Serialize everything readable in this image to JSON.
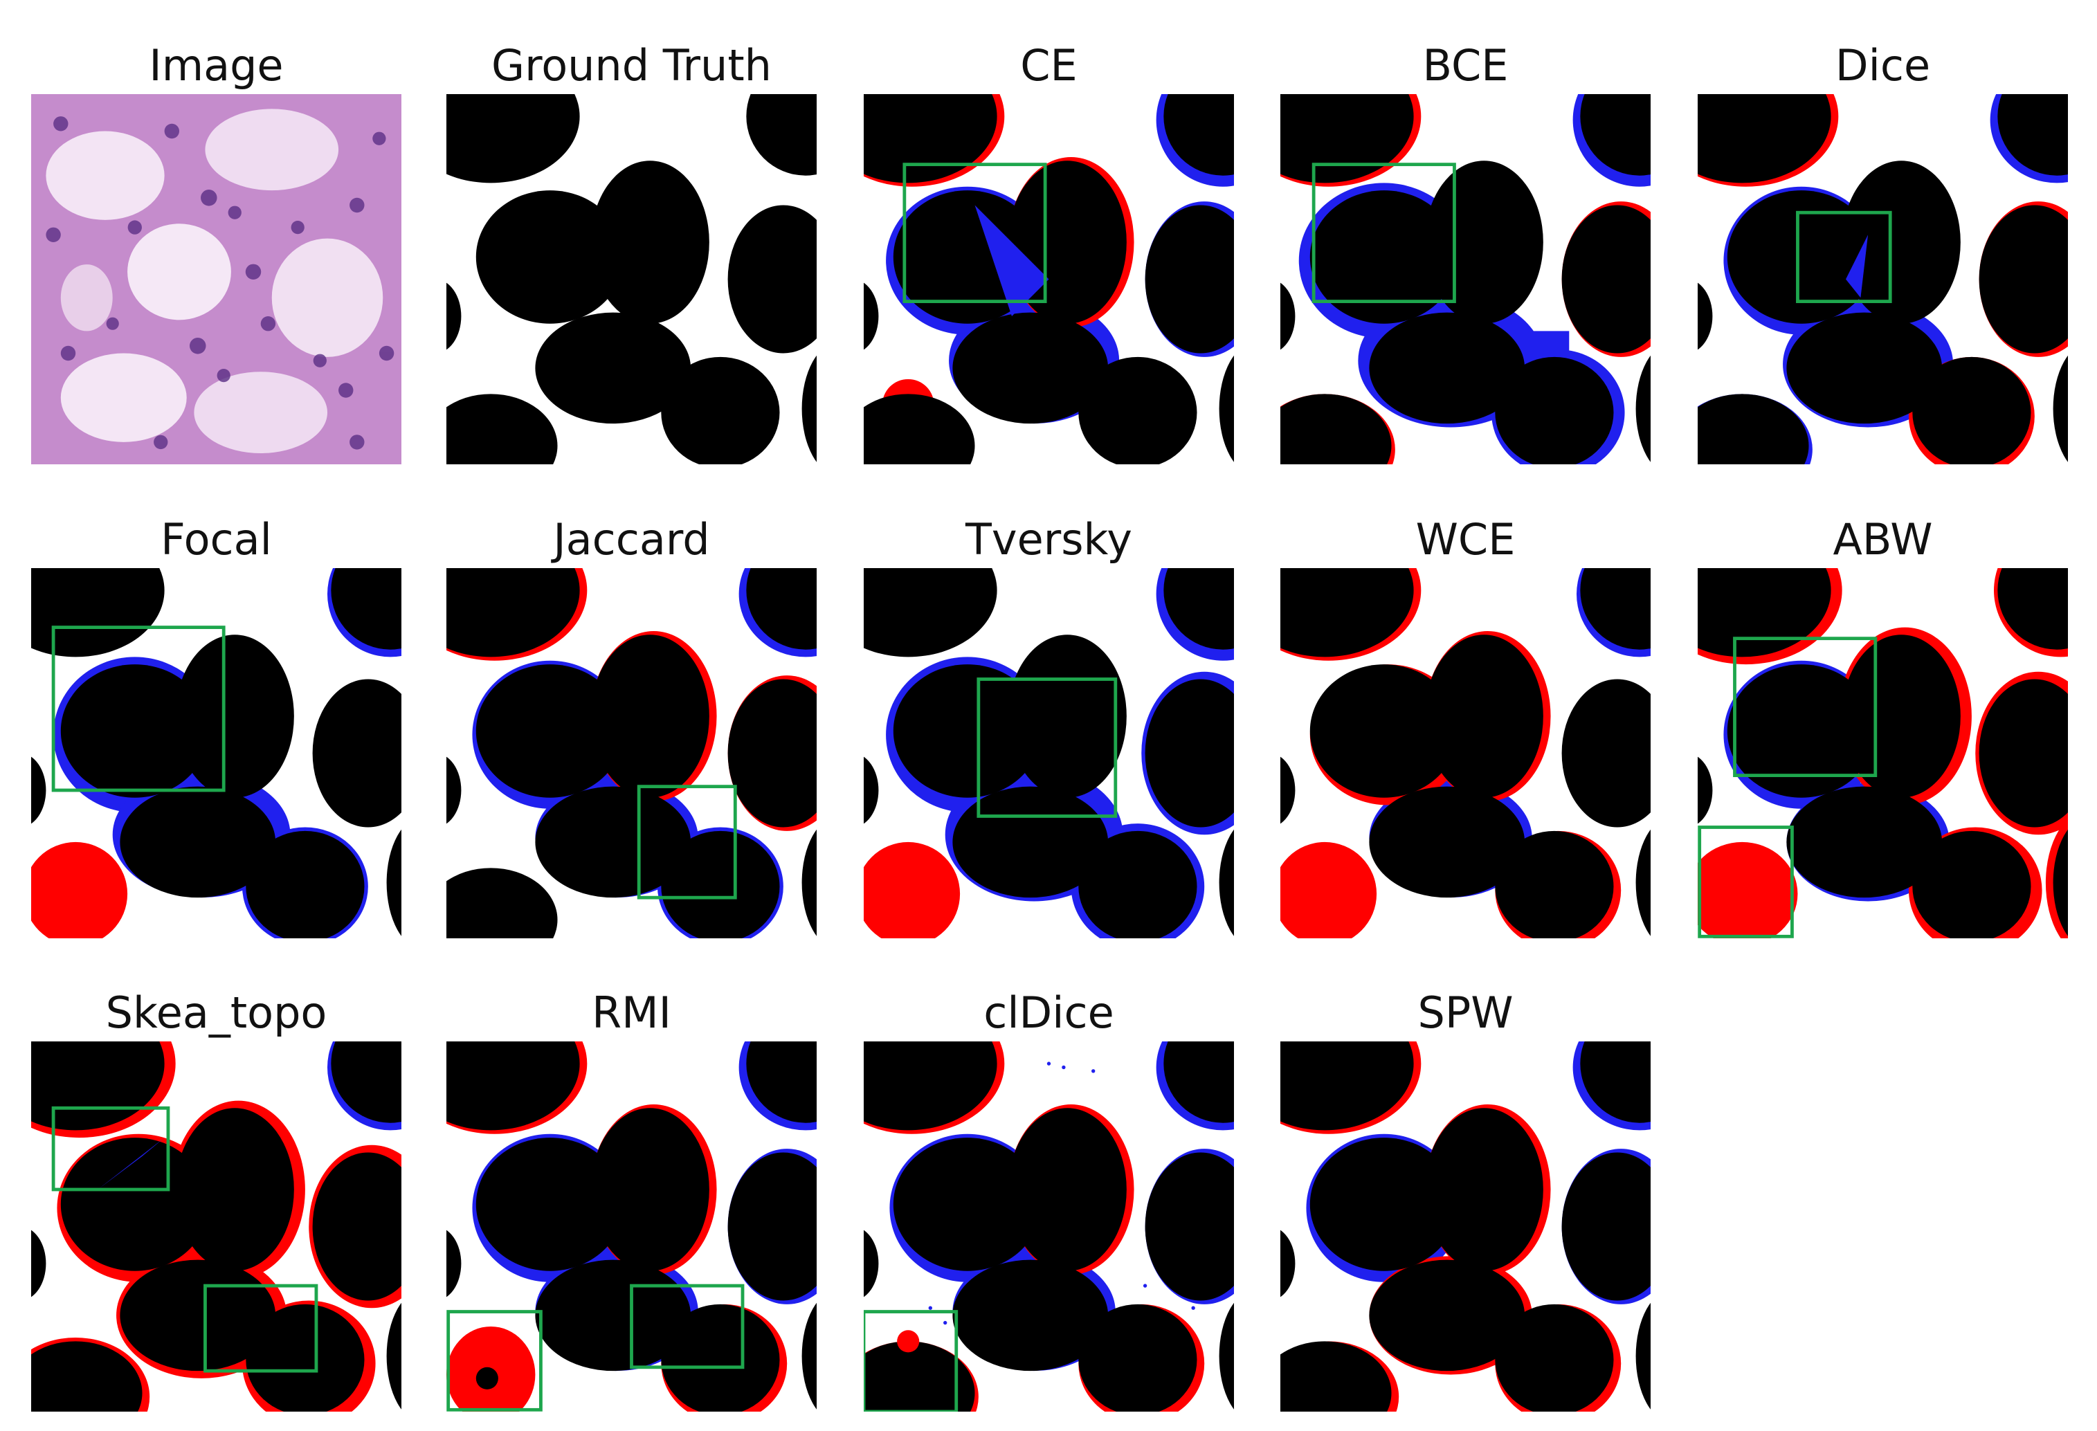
{
  "colors": {
    "foreground": "#000000",
    "background": "#ffffff",
    "false_positive": "#2020ee",
    "false_negative": "#ff0000",
    "highlight_box": "#1ea64d"
  },
  "panels": [
    {
      "title": "Image",
      "kind": "histology"
    },
    {
      "title": "Ground Truth",
      "kind": "mask"
    },
    {
      "title": "CE",
      "kind": "prediction"
    },
    {
      "title": "BCE",
      "kind": "prediction"
    },
    {
      "title": "Dice",
      "kind": "prediction"
    },
    {
      "title": "Focal",
      "kind": "prediction"
    },
    {
      "title": "Jaccard",
      "kind": "prediction"
    },
    {
      "title": "Tversky",
      "kind": "prediction"
    },
    {
      "title": "WCE",
      "kind": "prediction"
    },
    {
      "title": "ABW",
      "kind": "prediction"
    },
    {
      "title": "Skea_topo",
      "kind": "prediction"
    },
    {
      "title": "RMI",
      "kind": "prediction"
    },
    {
      "title": "clDice",
      "kind": "prediction"
    },
    {
      "title": "SPW",
      "kind": "prediction"
    }
  ]
}
